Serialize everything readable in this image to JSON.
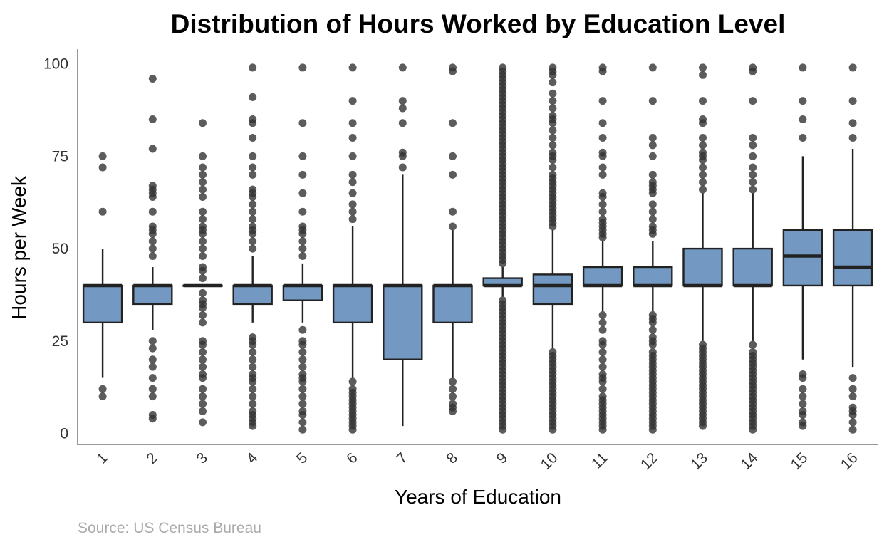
{
  "chart_data": {
    "type": "box",
    "title": "Distribution of Hours Worked by Education Level",
    "xlabel": "Years of Education",
    "ylabel": "Hours per Week",
    "source": "Source: US Census Bureau",
    "ylim": [
      -3,
      104
    ],
    "yticks": [
      0,
      25,
      50,
      75,
      100
    ],
    "grid": false,
    "box_color": "#7399c2",
    "edge_color": "#222222",
    "categories": [
      "1",
      "2",
      "3",
      "4",
      "5",
      "6",
      "7",
      "8",
      "9",
      "10",
      "11",
      "12",
      "13",
      "14",
      "15",
      "16"
    ],
    "boxes": [
      {
        "category": "1",
        "q1": 30,
        "median": 40,
        "q3": 40,
        "whisker_low": 15,
        "whisker_high": 50,
        "outliers": [
          10,
          12,
          60,
          72,
          75
        ]
      },
      {
        "category": "2",
        "q1": 35,
        "median": 40,
        "q3": 40,
        "whisker_low": 28,
        "whisker_high": 45,
        "outliers": [
          4,
          5,
          10,
          12,
          15,
          18,
          20,
          23,
          25,
          48,
          50,
          52,
          54,
          55,
          56,
          60,
          64,
          65,
          66,
          67,
          77,
          85,
          96
        ]
      },
      {
        "category": "3",
        "q1": 40,
        "median": 40,
        "q3": 40,
        "whisker_low": 40,
        "whisker_high": 40,
        "outliers": [
          3,
          6,
          8,
          10,
          12,
          15,
          16,
          18,
          20,
          22,
          24,
          25,
          30,
          32,
          34,
          35,
          36,
          38,
          42,
          44,
          45,
          48,
          50,
          52,
          54,
          55,
          56,
          58,
          60,
          64,
          66,
          68,
          70,
          72,
          75,
          84
        ]
      },
      {
        "category": "4",
        "q1": 35,
        "median": 40,
        "q3": 40,
        "whisker_low": 30,
        "whisker_high": 48,
        "outliers": [
          2,
          3,
          4,
          5,
          6,
          8,
          10,
          12,
          14,
          15,
          16,
          18,
          20,
          22,
          24,
          25,
          26,
          50,
          52,
          54,
          55,
          56,
          58,
          60,
          62,
          64,
          65,
          66,
          70,
          72,
          75,
          80,
          84,
          85,
          91,
          99
        ]
      },
      {
        "category": "5",
        "q1": 36,
        "median": 40,
        "q3": 40,
        "whisker_low": 30,
        "whisker_high": 46,
        "outliers": [
          1,
          3,
          5,
          6,
          8,
          10,
          12,
          14,
          15,
          16,
          18,
          20,
          22,
          24,
          25,
          28,
          48,
          50,
          52,
          54,
          55,
          56,
          60,
          65,
          70,
          75,
          84,
          99
        ]
      },
      {
        "category": "6",
        "q1": 30,
        "median": 40,
        "q3": 40,
        "whisker_low": 15,
        "whisker_high": 56,
        "outliers": [
          1,
          2,
          3,
          4,
          5,
          6,
          7,
          8,
          9,
          10,
          11,
          12,
          14,
          58,
          60,
          62,
          65,
          68,
          70,
          75,
          80,
          84,
          90,
          99
        ]
      },
      {
        "category": "7",
        "q1": 20,
        "median": 40,
        "q3": 40,
        "whisker_low": 2,
        "whisker_high": 70,
        "outliers": [
          72,
          75,
          76,
          84,
          88,
          90,
          99
        ]
      },
      {
        "category": "8",
        "q1": 30,
        "median": 40,
        "q3": 40,
        "whisker_low": 15,
        "whisker_high": 55,
        "outliers": [
          6,
          7,
          8,
          10,
          12,
          14,
          56,
          60,
          70,
          75,
          84,
          98,
          99
        ]
      },
      {
        "category": "9",
        "q1": 40,
        "median": 40,
        "q3": 42,
        "whisker_low": 37,
        "whisker_high": 45,
        "outliers": [
          1,
          2,
          3,
          4,
          5,
          6,
          7,
          8,
          9,
          10,
          11,
          12,
          13,
          14,
          15,
          16,
          17,
          18,
          19,
          20,
          21,
          22,
          23,
          24,
          25,
          26,
          27,
          28,
          29,
          30,
          31,
          32,
          33,
          34,
          35,
          36,
          46,
          47,
          48,
          49,
          50,
          51,
          52,
          53,
          54,
          55,
          56,
          57,
          58,
          59,
          60,
          61,
          62,
          63,
          64,
          65,
          66,
          67,
          68,
          69,
          70,
          71,
          72,
          73,
          74,
          75,
          76,
          77,
          78,
          79,
          80,
          81,
          82,
          83,
          84,
          85,
          86,
          87,
          88,
          89,
          90,
          91,
          92,
          93,
          94,
          95,
          96,
          97,
          98,
          99
        ]
      },
      {
        "category": "10",
        "q1": 35,
        "median": 40,
        "q3": 43,
        "whisker_low": 23,
        "whisker_high": 55,
        "outliers": [
          1,
          2,
          3,
          4,
          5,
          6,
          7,
          8,
          9,
          10,
          11,
          12,
          13,
          14,
          15,
          16,
          17,
          18,
          19,
          20,
          21,
          22,
          56,
          57,
          58,
          59,
          60,
          61,
          62,
          63,
          64,
          65,
          66,
          67,
          68,
          69,
          70,
          72,
          74,
          75,
          76,
          78,
          80,
          82,
          84,
          85,
          86,
          88,
          90,
          92,
          95,
          97,
          98,
          99
        ]
      },
      {
        "category": "11",
        "q1": 40,
        "median": 40,
        "q3": 45,
        "whisker_low": 33,
        "whisker_high": 52,
        "outliers": [
          1,
          2,
          3,
          4,
          5,
          6,
          7,
          8,
          9,
          10,
          12,
          14,
          15,
          16,
          18,
          20,
          22,
          24,
          25,
          28,
          30,
          32,
          53,
          54,
          55,
          56,
          57,
          58,
          60,
          62,
          64,
          65,
          70,
          72,
          75,
          76,
          80,
          84,
          90,
          98,
          99
        ]
      },
      {
        "category": "12",
        "q1": 40,
        "median": 40,
        "q3": 45,
        "whisker_low": 33,
        "whisker_high": 52,
        "outliers": [
          1,
          2,
          3,
          4,
          5,
          6,
          7,
          8,
          9,
          10,
          11,
          12,
          13,
          14,
          15,
          16,
          17,
          18,
          19,
          20,
          21,
          22,
          24,
          25,
          26,
          28,
          30,
          31,
          32,
          54,
          55,
          56,
          58,
          60,
          62,
          65,
          66,
          67,
          68,
          70,
          75,
          78,
          80,
          90,
          99
        ]
      },
      {
        "category": "13",
        "q1": 40,
        "median": 40,
        "q3": 50,
        "whisker_low": 25,
        "whisker_high": 65,
        "outliers": [
          2,
          3,
          4,
          5,
          6,
          7,
          8,
          9,
          10,
          11,
          12,
          13,
          14,
          15,
          16,
          17,
          18,
          19,
          20,
          21,
          22,
          23,
          24,
          66,
          68,
          70,
          72,
          74,
          75,
          76,
          78,
          80,
          84,
          85,
          90,
          97,
          99
        ]
      },
      {
        "category": "14",
        "q1": 40,
        "median": 40,
        "q3": 50,
        "whisker_low": 25,
        "whisker_high": 65,
        "outliers": [
          1,
          2,
          3,
          4,
          5,
          6,
          7,
          8,
          9,
          10,
          11,
          12,
          13,
          14,
          15,
          16,
          17,
          18,
          19,
          20,
          21,
          22,
          24,
          66,
          68,
          70,
          72,
          75,
          78,
          80,
          90,
          98,
          99
        ]
      },
      {
        "category": "15",
        "q1": 40,
        "median": 48,
        "q3": 55,
        "whisker_low": 20,
        "whisker_high": 75,
        "outliers": [
          2,
          3,
          5,
          6,
          8,
          10,
          12,
          15,
          16,
          80,
          85,
          90,
          99
        ]
      },
      {
        "category": "16",
        "q1": 40,
        "median": 45,
        "q3": 55,
        "whisker_low": 18,
        "whisker_high": 77,
        "outliers": [
          1,
          3,
          5,
          6,
          7,
          10,
          12,
          15,
          80,
          84,
          90,
          99
        ]
      }
    ]
  }
}
